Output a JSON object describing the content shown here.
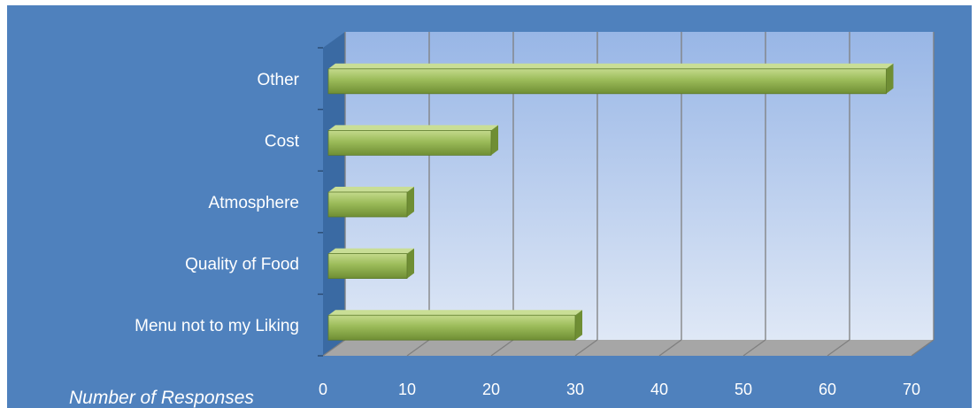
{
  "chart_data": {
    "type": "bar",
    "orientation": "horizontal",
    "style": "3d",
    "categories": [
      "Menu not to my Liking",
      "Quality of Food",
      "Atmosphere",
      "Cost",
      "Other"
    ],
    "values": [
      30,
      10,
      10,
      20,
      67
    ],
    "xlabel": "Number of Responses",
    "ylabel": "",
    "xlim": [
      0,
      70
    ],
    "xticks": [
      "0",
      "10",
      "20",
      "30",
      "40",
      "50",
      "60",
      "70"
    ],
    "grid": true,
    "legend": "none",
    "colors": {
      "background": "#4f81bd",
      "plot_top": "#98b6e6",
      "plot_bottom": "#dfe8f6",
      "bar": "#9bbb59",
      "bar_dark": "#6f8e34",
      "gridline": "#7f7f7f",
      "text": "#ffffff"
    }
  }
}
